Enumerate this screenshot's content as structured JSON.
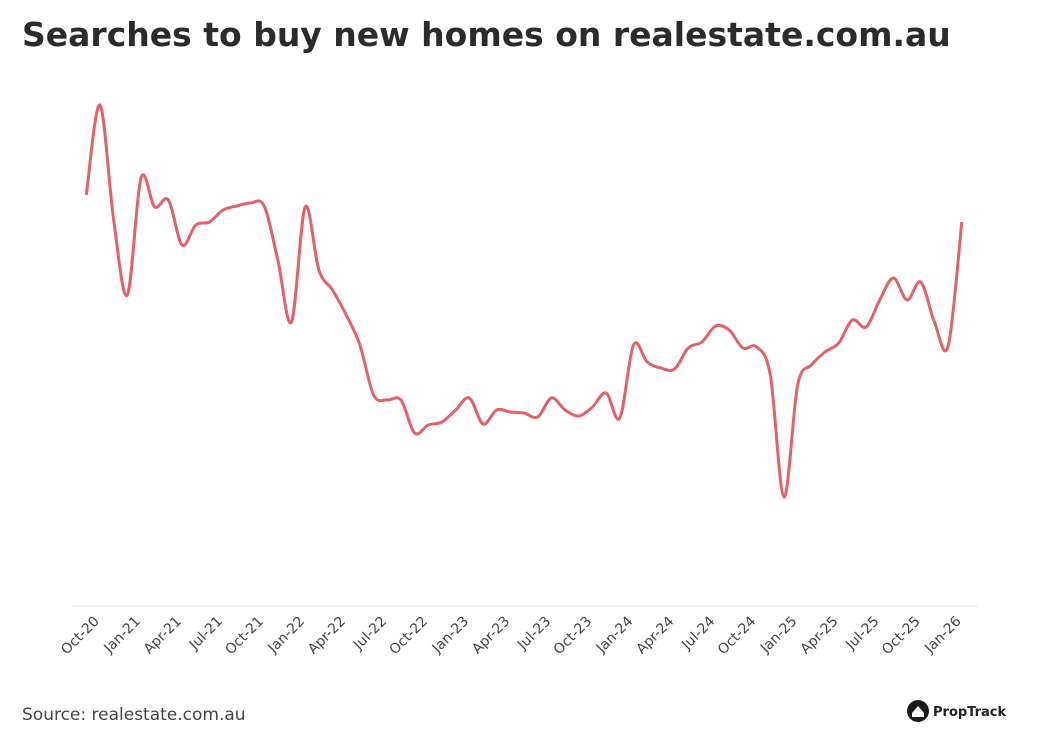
{
  "chart_data": {
    "type": "line",
    "title": "Searches to buy new homes on realestate.com.au",
    "source": "Source: realestate.com.au",
    "brand": "PropTrack",
    "categories": [
      null,
      "Oct-20",
      null,
      null,
      "Jan-21",
      null,
      null,
      "Apr-21",
      null,
      null,
      "Jul-21",
      null,
      null,
      "Oct-21",
      null,
      null,
      "Jan-22",
      null,
      null,
      "Apr-22",
      null,
      null,
      "Jul-22",
      null,
      null,
      "Oct-22",
      null,
      null,
      "Jan-23",
      null,
      null,
      "Apr-23",
      null,
      null,
      "Jul-23",
      null,
      null,
      "Oct-23",
      null,
      null,
      "Jan-24",
      null,
      null,
      "Apr-24",
      null,
      null,
      "Jul-24",
      null,
      null,
      "Oct-24",
      null,
      null,
      "Jan-25",
      null,
      null,
      "Apr-25",
      null,
      null,
      "Jul-25",
      null,
      null,
      "Oct-25",
      null,
      null,
      "Jan-26"
    ],
    "series": [
      {
        "color": "#e0626c",
        "values": [
          411,
          501,
          386,
          311,
          428,
          399,
          406,
          361,
          381,
          384,
          396,
          400,
          403,
          400,
          346,
          284,
          399,
          336,
          316,
          291,
          261,
          211,
          206,
          206,
          173,
          181,
          184,
          196,
          208,
          182,
          196,
          194,
          193,
          189,
          208,
          196,
          190,
          199,
          213,
          188,
          261,
          244,
          238,
          237,
          258,
          264,
          280,
          276,
          258,
          259,
          231,
          109,
          221,
          241,
          254,
          263,
          286,
          279,
          306,
          328,
          306,
          324,
          284,
          260,
          384
        ]
      }
    ],
    "ylim": [
      0,
      530
    ]
  }
}
